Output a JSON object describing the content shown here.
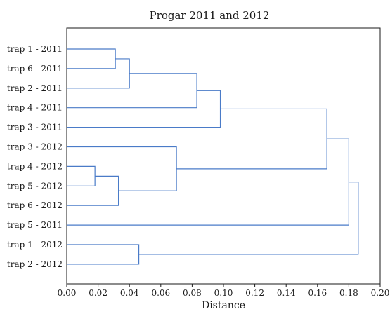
{
  "chart_data": {
    "type": "dendrogram",
    "title": "Progar 2011 and 2012",
    "xlabel": "Distance",
    "ylabel": "",
    "xlim": [
      0.0,
      0.2
    ],
    "xticks": [
      0.0,
      0.02,
      0.04,
      0.06,
      0.08,
      0.1,
      0.12,
      0.14,
      0.16,
      0.18,
      0.2
    ],
    "xtick_labels": [
      "0.00",
      "0.02",
      "0.04",
      "0.06",
      "0.08",
      "0.10",
      "0.12",
      "0.14",
      "0.16",
      "0.18",
      "0.20"
    ],
    "grid": false,
    "leaves": [
      "trap 1 - 2011",
      "trap 6 - 2011",
      "trap 2 - 2011",
      "trap 4 - 2011",
      "trap 3 - 2011",
      "trap 3 - 2012",
      "trap 4 - 2012",
      "trap 5 - 2012",
      "trap 6 - 2012",
      "trap 5 - 2011",
      "trap 1 - 2012",
      "trap 2 - 2012"
    ],
    "merges": [
      {
        "id": "n1",
        "left": "trap 1 - 2011",
        "right": "trap 6 - 2011",
        "distance": 0.031
      },
      {
        "id": "n2",
        "left": "n1",
        "right": "trap 2 - 2011",
        "distance": 0.04
      },
      {
        "id": "n3",
        "left": "n2",
        "right": "trap 4 - 2011",
        "distance": 0.083
      },
      {
        "id": "n4",
        "left": "n3",
        "right": "trap 3 - 2011",
        "distance": 0.098
      },
      {
        "id": "n5",
        "left": "trap 4 - 2012",
        "right": "trap 5 - 2012",
        "distance": 0.018
      },
      {
        "id": "n6",
        "left": "n5",
        "right": "trap 6 - 2012",
        "distance": 0.033
      },
      {
        "id": "n7",
        "left": "trap 3 - 2012",
        "right": "n6",
        "distance": 0.07
      },
      {
        "id": "n8",
        "left": "n4",
        "right": "n7",
        "distance": 0.166
      },
      {
        "id": "n9",
        "left": "n8",
        "right": "trap 5 - 2011",
        "distance": 0.18
      },
      {
        "id": "n10",
        "left": "trap 1 - 2012",
        "right": "trap 2 - 2012",
        "distance": 0.046
      },
      {
        "id": "n11",
        "left": "n9",
        "right": "n10",
        "distance": 0.186
      }
    ],
    "colors": {
      "branch": "#4a7bc8",
      "frame": "#1a1a1a",
      "text": "#1a1a1a"
    }
  }
}
